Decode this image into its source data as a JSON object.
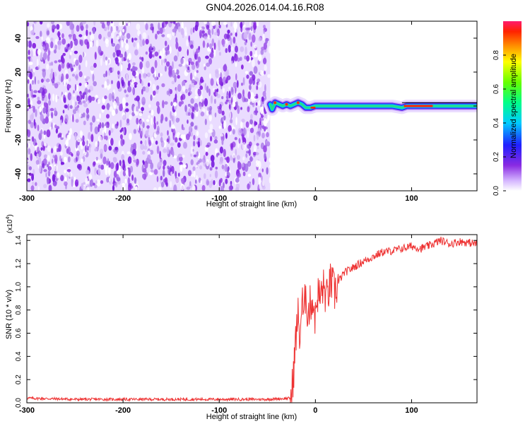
{
  "page_title": "GN04.2026.014.04.16.R08",
  "chart_data": [
    {
      "type": "heatmap",
      "xlabel": "Height of straight line (km)",
      "ylabel": "Frequency (Hz)",
      "xlim": [
        -300,
        168
      ],
      "ylim": [
        -50,
        50
      ],
      "x_ticks": [
        -300,
        -200,
        -100,
        0,
        100
      ],
      "y_ticks": [
        -40,
        -20,
        0,
        20,
        40
      ],
      "noise_region_x": [
        -300,
        -47
      ],
      "ridge": [
        {
          "x": -47,
          "y": 1
        },
        {
          "x": -45,
          "y": -2
        },
        {
          "x": -42,
          "y": 2
        },
        {
          "x": -38,
          "y": 1
        },
        {
          "x": -34,
          "y": 0
        },
        {
          "x": -30,
          "y": 1
        },
        {
          "x": -26,
          "y": 0
        },
        {
          "x": -22,
          "y": 1
        },
        {
          "x": -18,
          "y": 2
        },
        {
          "x": -14,
          "y": 1
        },
        {
          "x": -10,
          "y": -1
        },
        {
          "x": -5,
          "y": -1
        },
        {
          "x": 0,
          "y": 0
        },
        {
          "x": 20,
          "y": 0
        },
        {
          "x": 50,
          "y": 0
        },
        {
          "x": 80,
          "y": 0
        },
        {
          "x": 90,
          "y": -1
        },
        {
          "x": 95,
          "y": 0
        },
        {
          "x": 120,
          "y": 0
        },
        {
          "x": 168,
          "y": 0
        }
      ],
      "colorbar": {
        "label": "Normalized spectral amplitude",
        "range": [
          0,
          1
        ],
        "ticks": [
          "0.0",
          "0.2",
          "0.4",
          "0.6",
          "0.8"
        ]
      }
    },
    {
      "type": "line",
      "xlabel": "Height of straight line (km)",
      "ylabel": "SNR (10 * v/v)",
      "y_scale_label": "(x10",
      "y_scale_exp": "4",
      "y_scale_close": ")",
      "xlim": [
        -300,
        168
      ],
      "ylim": [
        0,
        1.45
      ],
      "x_ticks": [
        -300,
        -200,
        -100,
        0,
        100
      ],
      "y_ticks": [
        "0.0",
        "0.2",
        "0.4",
        "0.6",
        "0.8",
        "1.0",
        "1.2",
        "1.4"
      ],
      "color": "#ee3333",
      "series": [
        {
          "x": [
            -300,
            -250,
            -200,
            -150,
            -100,
            -50,
            -25,
            -22,
            -20,
            -18,
            -16,
            -14,
            -12,
            -10,
            -8,
            -6,
            -4,
            -2,
            0,
            2,
            5,
            8,
            12,
            16,
            20,
            25,
            30,
            40,
            50,
            60,
            70,
            80,
            90,
            100,
            110,
            120,
            130,
            140,
            150,
            160,
            168
          ],
          "y": [
            0.04,
            0.03,
            0.03,
            0.03,
            0.03,
            0.03,
            0.04,
            0.35,
            0.6,
            0.75,
            0.55,
            0.9,
            0.7,
            1.0,
            0.75,
            0.82,
            0.9,
            0.85,
            0.72,
            0.95,
            0.9,
            1.0,
            0.9,
            1.05,
            0.95,
            1.06,
            1.12,
            1.17,
            1.22,
            1.26,
            1.3,
            1.31,
            1.33,
            1.35,
            1.33,
            1.36,
            1.4,
            1.37,
            1.39,
            1.38,
            1.37
          ]
        }
      ]
    }
  ]
}
